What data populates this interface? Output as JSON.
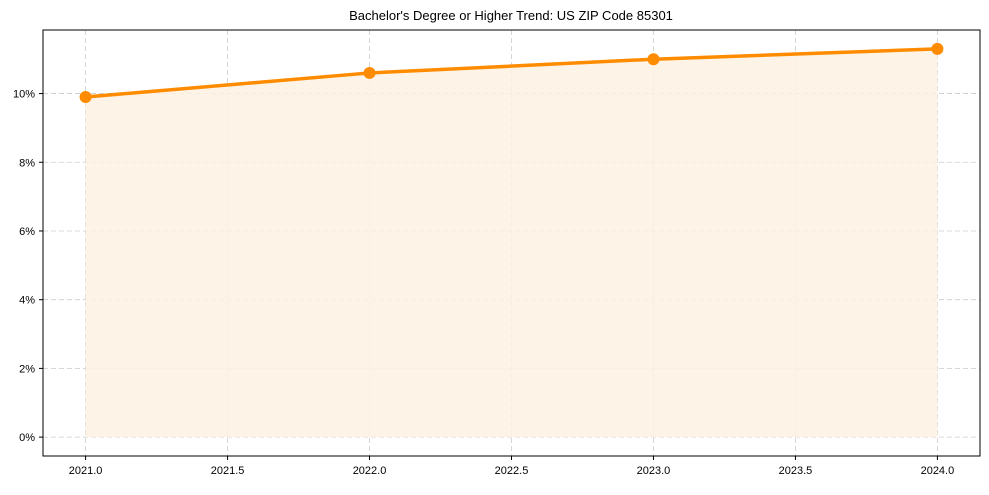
{
  "chart_data": {
    "type": "line",
    "title": "Bachelor's Degree or Higher Trend: US ZIP Code 85301",
    "xlabel": "",
    "ylabel": "",
    "x": [
      2021,
      2022,
      2023,
      2024
    ],
    "series": [
      {
        "name": "Bachelor's Degree or Higher",
        "values": [
          9.9,
          10.6,
          11.0,
          11.3
        ],
        "unit": "%"
      }
    ],
    "xlim": [
      2020.85,
      2024.15
    ],
    "ylim": [
      -0.55,
      11.85
    ],
    "x_ticks": [
      2021.0,
      2021.5,
      2022.0,
      2022.5,
      2023.0,
      2023.5,
      2024.0
    ],
    "x_tick_labels": [
      "2021.0",
      "2021.5",
      "2022.0",
      "2022.5",
      "2023.0",
      "2023.5",
      "2024.0"
    ],
    "y_ticks": [
      0,
      2,
      4,
      6,
      8,
      10
    ],
    "y_tick_labels": [
      "0%",
      "2%",
      "4%",
      "6%",
      "8%",
      "10%"
    ],
    "grid": true,
    "grid_style": "dashed",
    "fill_under_line": true,
    "markers": true,
    "legend": null,
    "colors": {
      "line": "#FF8C00",
      "fill": "#FEF1E3",
      "grid": "#CCCCCC",
      "axis": "#000000"
    }
  }
}
